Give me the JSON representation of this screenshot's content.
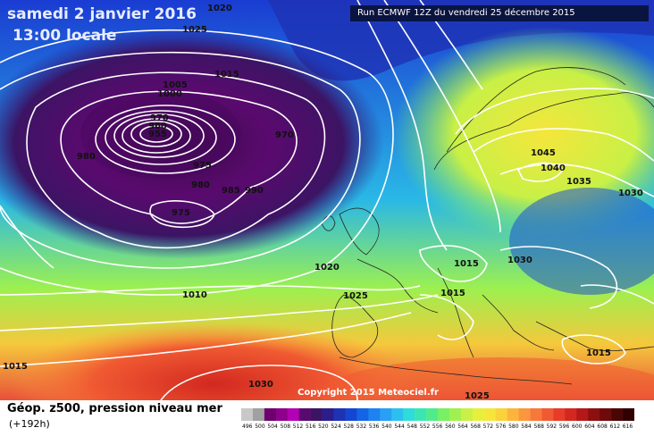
{
  "header": {
    "date_line": "samedi 2 janvier 2016",
    "time_line": "13:00 locale",
    "run_info": "Run ECMWF 12Z du vendredi 25 décembre 2015",
    "copyright": "Copyright 2015 Meteociel.fr"
  },
  "footer": {
    "title": "Géop. z500, pression niveau mer",
    "lead": "(+192h)"
  },
  "isobars": [
    "1020",
    "1025",
    "1015",
    "1005",
    "1000",
    "970",
    "960",
    "955",
    "970",
    "980",
    "975",
    "980",
    "985",
    "990",
    "975",
    "1045",
    "1040",
    "1035",
    "1030",
    "1020",
    "1015",
    "1030",
    "1015",
    "1025",
    "1010",
    "1015",
    "1030",
    "1015",
    "1025"
  ],
  "legend": {
    "colors": [
      "#c8c8c8",
      "#a0a0a0",
      "#6e006e",
      "#8c008c",
      "#b400b4",
      "#5a0a6e",
      "#3c1464",
      "#2a1e8c",
      "#1e32b4",
      "#1446d2",
      "#1464e6",
      "#1e82f0",
      "#28a0f5",
      "#2cc0f0",
      "#30dcd8",
      "#3ce6b4",
      "#50ec8c",
      "#78f064",
      "#a0f050",
      "#c8f046",
      "#e6f03c",
      "#f5e63c",
      "#fad23c",
      "#fcb43c",
      "#fc963c",
      "#f8783c",
      "#f05a32",
      "#e63c28",
      "#d22820",
      "#b41818",
      "#8c1010",
      "#6e0a0a",
      "#4a0505",
      "#300000"
    ],
    "labels": [
      "496",
      "500",
      "504",
      "508",
      "512",
      "516",
      "520",
      "524",
      "528",
      "532",
      "536",
      "540",
      "544",
      "548",
      "552",
      "556",
      "560",
      "564",
      "568",
      "572",
      "576",
      "580",
      "584",
      "588",
      "592",
      "596",
      "600",
      "604",
      "608",
      "612",
      "616"
    ]
  }
}
